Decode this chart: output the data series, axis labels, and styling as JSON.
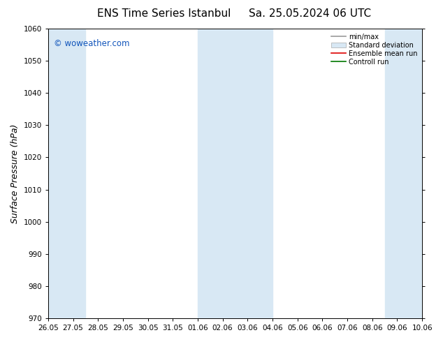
{
  "title_left": "ENS Time Series Istanbul",
  "title_right": "Sa. 25.05.2024 06 UTC",
  "ylabel": "Surface Pressure (hPa)",
  "ylim": [
    970,
    1060
  ],
  "yticks": [
    970,
    980,
    990,
    1000,
    1010,
    1020,
    1030,
    1040,
    1050,
    1060
  ],
  "xlim": [
    0,
    15
  ],
  "xtick_labels": [
    "26.05",
    "27.05",
    "28.05",
    "29.05",
    "30.05",
    "31.05",
    "01.06",
    "02.06",
    "03.06",
    "04.06",
    "05.06",
    "06.06",
    "07.06",
    "08.06",
    "09.06",
    "10.06"
  ],
  "xtick_positions": [
    0,
    1,
    2,
    3,
    4,
    5,
    6,
    7,
    8,
    9,
    10,
    11,
    12,
    13,
    14,
    15
  ],
  "watermark": "© woweather.com",
  "watermark_color": "#1155bb",
  "bg_color": "#ffffff",
  "band_color": "#d8e8f4",
  "band_positions": [
    -0.5,
    0.5,
    6.0,
    8.0,
    13.5
  ],
  "band_widths": [
    1.0,
    1.0,
    2.0,
    1.0,
    2.0
  ],
  "legend_labels": [
    "min/max",
    "Standard deviation",
    "Ensemble mean run",
    "Controll run"
  ],
  "legend_line_colors": [
    "#999999",
    "#bbbbbb",
    "#dd0000",
    "#007700"
  ],
  "title_fontsize": 11,
  "tick_fontsize": 7.5,
  "ylabel_fontsize": 9
}
